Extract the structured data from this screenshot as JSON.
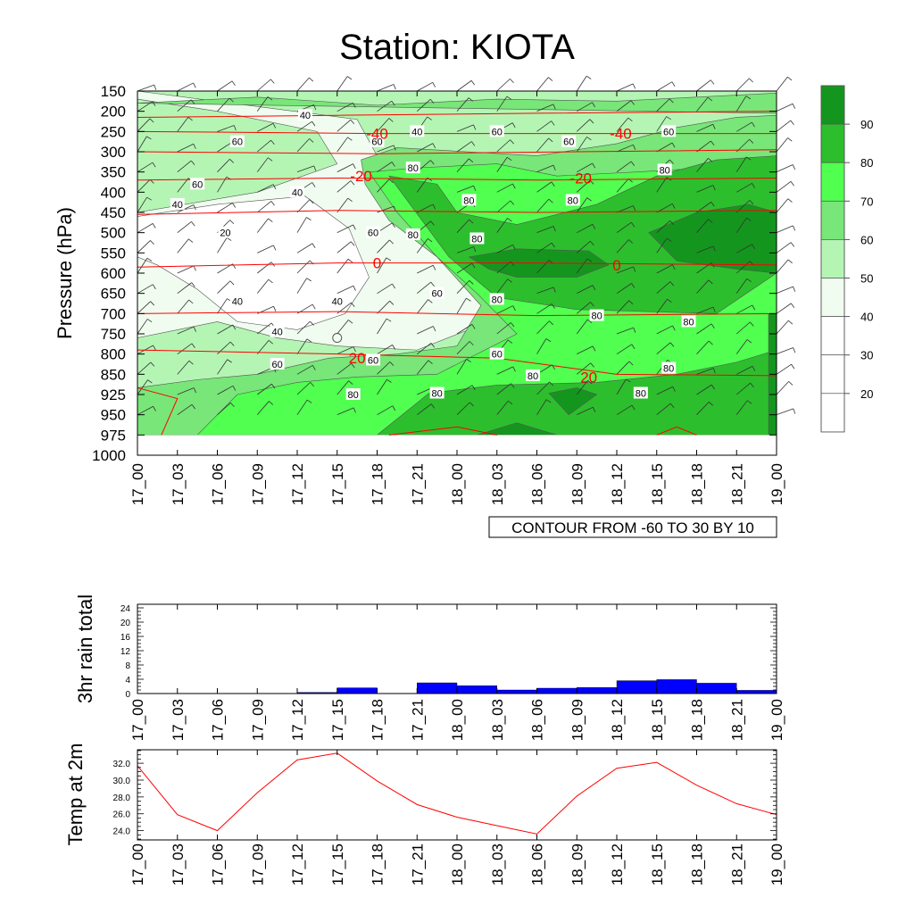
{
  "title": "Station: KIOTA",
  "time_labels": [
    "17_00",
    "17_03",
    "17_06",
    "17_09",
    "17_12",
    "17_15",
    "17_18",
    "17_21",
    "18_00",
    "18_03",
    "18_06",
    "18_09",
    "18_12",
    "18_15",
    "18_18",
    "18_21",
    "19_00"
  ],
  "chart_data": [
    {
      "type": "heatmap",
      "name": "time-pressure cross section",
      "ylabel": "Pressure (hPa)",
      "pressure_levels": [
        150,
        200,
        250,
        300,
        350,
        400,
        450,
        500,
        550,
        600,
        650,
        700,
        750,
        800,
        850,
        925,
        950,
        975,
        1000
      ],
      "shaded_variable_label_values": [
        20,
        30,
        40,
        50,
        60,
        70,
        80,
        90
      ],
      "colorbar_labels": [
        "90",
        "80",
        "70",
        "60",
        "50",
        "40",
        "30",
        "20"
      ],
      "colorbar_colors": [
        "#14961e",
        "#2dbe2d",
        "#50ff50",
        "#78e678",
        "#b4f5b4",
        "#f0fcf0",
        "#ffffff",
        "#ffffff",
        "#ffffff"
      ],
      "shading_contour_labels": [
        {
          "text": "40",
          "t": 4.2,
          "p": 210
        },
        {
          "text": "40",
          "t": 7.0,
          "p": 250
        },
        {
          "text": "60",
          "t": 2.5,
          "p": 275
        },
        {
          "text": "60",
          "t": 6.0,
          "p": 275
        },
        {
          "text": "60",
          "t": 9.0,
          "p": 250
        },
        {
          "text": "60",
          "t": 10.8,
          "p": 275
        },
        {
          "text": "60",
          "t": 13.3,
          "p": 250
        },
        {
          "text": "60",
          "t": 1.5,
          "p": 380
        },
        {
          "text": "40",
          "t": 1.0,
          "p": 430
        },
        {
          "text": "40",
          "t": 4.0,
          "p": 400
        },
        {
          "text": "80",
          "t": 6.9,
          "p": 340
        },
        {
          "text": "80",
          "t": 8.3,
          "p": 420
        },
        {
          "text": "80",
          "t": 10.9,
          "p": 420
        },
        {
          "text": "80",
          "t": 13.2,
          "p": 345
        },
        {
          "text": "20",
          "t": 2.2,
          "p": 500
        },
        {
          "text": "60",
          "t": 5.9,
          "p": 500
        },
        {
          "text": "80",
          "t": 6.9,
          "p": 505
        },
        {
          "text": "80",
          "t": 8.5,
          "p": 515
        },
        {
          "text": "60",
          "t": 7.5,
          "p": 650
        },
        {
          "text": "80",
          "t": 9.0,
          "p": 665
        },
        {
          "text": "80",
          "t": 11.5,
          "p": 705
        },
        {
          "text": "80",
          "t": 13.8,
          "p": 720
        },
        {
          "text": "40",
          "t": 2.5,
          "p": 670
        },
        {
          "text": "40",
          "t": 5.0,
          "p": 670
        },
        {
          "text": "40",
          "t": 3.5,
          "p": 745
        },
        {
          "text": "60",
          "t": 3.5,
          "p": 825
        },
        {
          "text": "60",
          "t": 5.9,
          "p": 815
        },
        {
          "text": "60",
          "t": 9.0,
          "p": 800
        },
        {
          "text": "80",
          "t": 9.9,
          "p": 855
        },
        {
          "text": "80",
          "t": 13.3,
          "p": 835
        },
        {
          "text": "80",
          "t": 12.6,
          "p": 920
        },
        {
          "text": "80",
          "t": 5.4,
          "p": 925
        },
        {
          "text": "80",
          "t": 7.5,
          "p": 920
        }
      ],
      "temperature_contour_labels": [
        {
          "text": "-40",
          "t": 6.0,
          "p": 255
        },
        {
          "text": "-40",
          "t": 12.1,
          "p": 255
        },
        {
          "text": "-20",
          "t": 5.6,
          "p": 360
        },
        {
          "text": "-20",
          "t": 11.1,
          "p": 365
        },
        {
          "text": "0",
          "t": 6.0,
          "p": 575
        },
        {
          "text": "0",
          "t": 12.0,
          "p": 580
        },
        {
          "text": "20",
          "t": 5.5,
          "p": 810
        },
        {
          "text": "20",
          "t": 11.3,
          "p": 860
        }
      ],
      "contour_info": "CONTOUR FROM -60 TO 30 BY 10"
    },
    {
      "type": "bar",
      "name": "3hr rain total",
      "ylabel": "3hr rain total",
      "ylim": [
        0,
        25
      ],
      "yticks": [
        0,
        4,
        8,
        12,
        16,
        20,
        24
      ],
      "values": [
        0,
        0,
        0,
        0,
        0,
        0.3,
        1.6,
        0,
        3.0,
        2.2,
        1.0,
        1.5,
        1.7,
        3.6,
        3.9,
        2.9,
        0.9
      ],
      "color": "#0000ff"
    },
    {
      "type": "line",
      "name": "Temp at 2m",
      "ylabel": "Temp at 2m",
      "ylim": [
        22.9,
        33.6
      ],
      "yticks": [
        "24.0",
        "26.0",
        "28.0",
        "30.0",
        "32.0"
      ],
      "values": [
        31.7,
        25.9,
        24.0,
        28.5,
        32.4,
        33.2,
        29.9,
        27.1,
        25.6,
        24.6,
        23.6,
        28.1,
        31.4,
        32.1,
        29.4,
        27.2,
        25.9
      ],
      "color": "#ff0000"
    }
  ]
}
